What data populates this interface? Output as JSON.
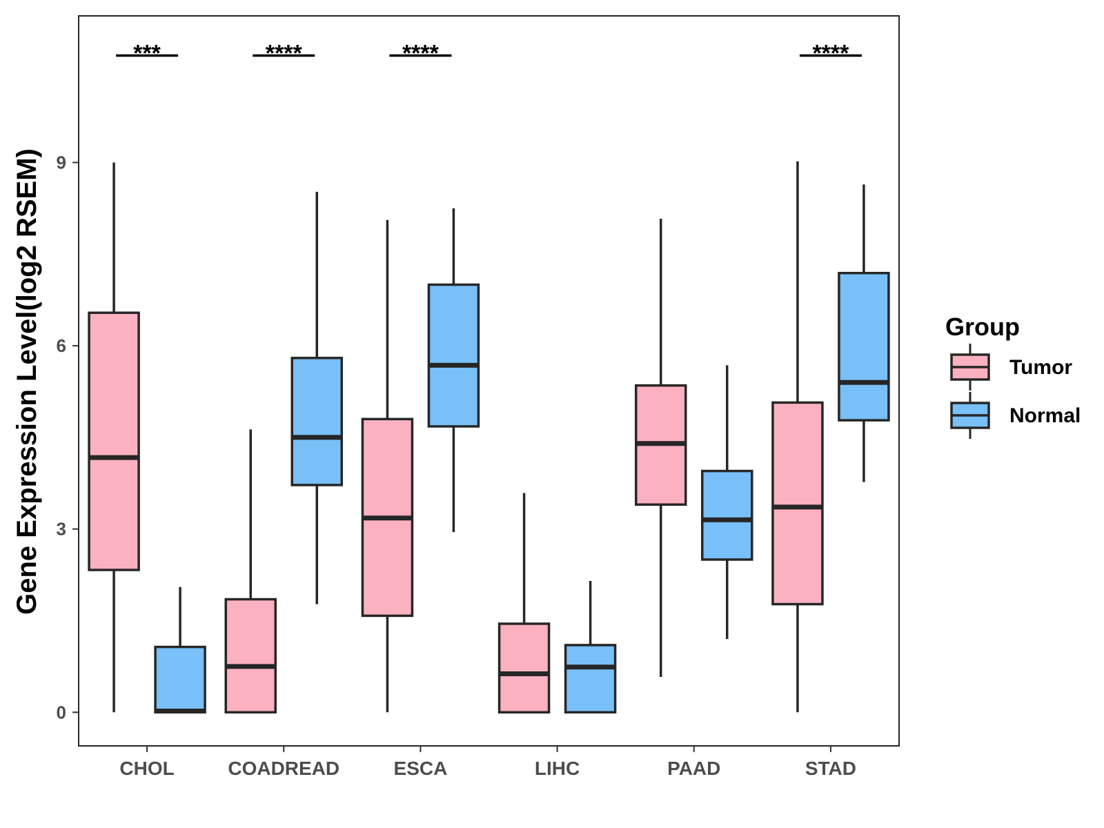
{
  "chart_data": {
    "type": "boxplot",
    "title": "",
    "xlabel": "",
    "ylabel": "Gene Expression Level(log2 RSEM)",
    "ylim": [
      -0.55,
      11.4
    ],
    "yticks": [
      0,
      3,
      6,
      9
    ],
    "grid": false,
    "legend": {
      "title": "Group",
      "placement": "right",
      "entries": [
        "Tumor",
        "Normal"
      ]
    },
    "colors": {
      "Tumor": "#FBB1C0",
      "Normal": "#78C0F7",
      "outline": "#262626"
    },
    "categories": [
      "CHOL",
      "COADREAD",
      "ESCA",
      "LIHC",
      "PAAD",
      "STAD"
    ],
    "series": [
      {
        "name": "Tumor",
        "boxes": [
          {
            "category": "CHOL",
            "min": 0,
            "q1": 2.33,
            "median": 4.17,
            "q3": 6.54,
            "max": 9.0
          },
          {
            "category": "COADREAD",
            "min": 0,
            "q1": 0,
            "median": 0.75,
            "q3": 1.85,
            "max": 4.63
          },
          {
            "category": "ESCA",
            "min": 0,
            "q1": 1.58,
            "median": 3.18,
            "q3": 4.8,
            "max": 8.06
          },
          {
            "category": "LIHC",
            "min": 0,
            "q1": 0,
            "median": 0.63,
            "q3": 1.45,
            "max": 3.59
          },
          {
            "category": "PAAD",
            "min": 0.58,
            "q1": 3.4,
            "median": 4.4,
            "q3": 5.35,
            "max": 8.08
          },
          {
            "category": "STAD",
            "min": 0,
            "q1": 1.77,
            "median": 3.36,
            "q3": 5.07,
            "max": 9.02
          }
        ]
      },
      {
        "name": "Normal",
        "boxes": [
          {
            "category": "CHOL",
            "min": 0,
            "q1": 0,
            "median": 0.02,
            "q3": 1.07,
            "max": 2.05
          },
          {
            "category": "COADREAD",
            "min": 1.77,
            "q1": 3.72,
            "median": 4.5,
            "q3": 5.8,
            "max": 8.52
          },
          {
            "category": "ESCA",
            "min": 2.95,
            "q1": 4.68,
            "median": 5.68,
            "q3": 7.0,
            "max": 8.25
          },
          {
            "category": "LIHC",
            "min": 0,
            "q1": 0,
            "median": 0.74,
            "q3": 1.1,
            "max": 2.15
          },
          {
            "category": "PAAD",
            "min": 1.2,
            "q1": 2.5,
            "median": 3.15,
            "q3": 3.95,
            "max": 5.68
          },
          {
            "category": "STAD",
            "min": 3.77,
            "q1": 4.78,
            "median": 5.4,
            "q3": 7.19,
            "max": 8.64
          }
        ]
      }
    ],
    "significance": [
      {
        "category": "CHOL",
        "label": "***",
        "y": 10.75
      },
      {
        "category": "COADREAD",
        "label": "****",
        "y": 10.75
      },
      {
        "category": "ESCA",
        "label": "****",
        "y": 10.75
      },
      {
        "category": "STAD",
        "label": "****",
        "y": 10.75
      }
    ]
  }
}
